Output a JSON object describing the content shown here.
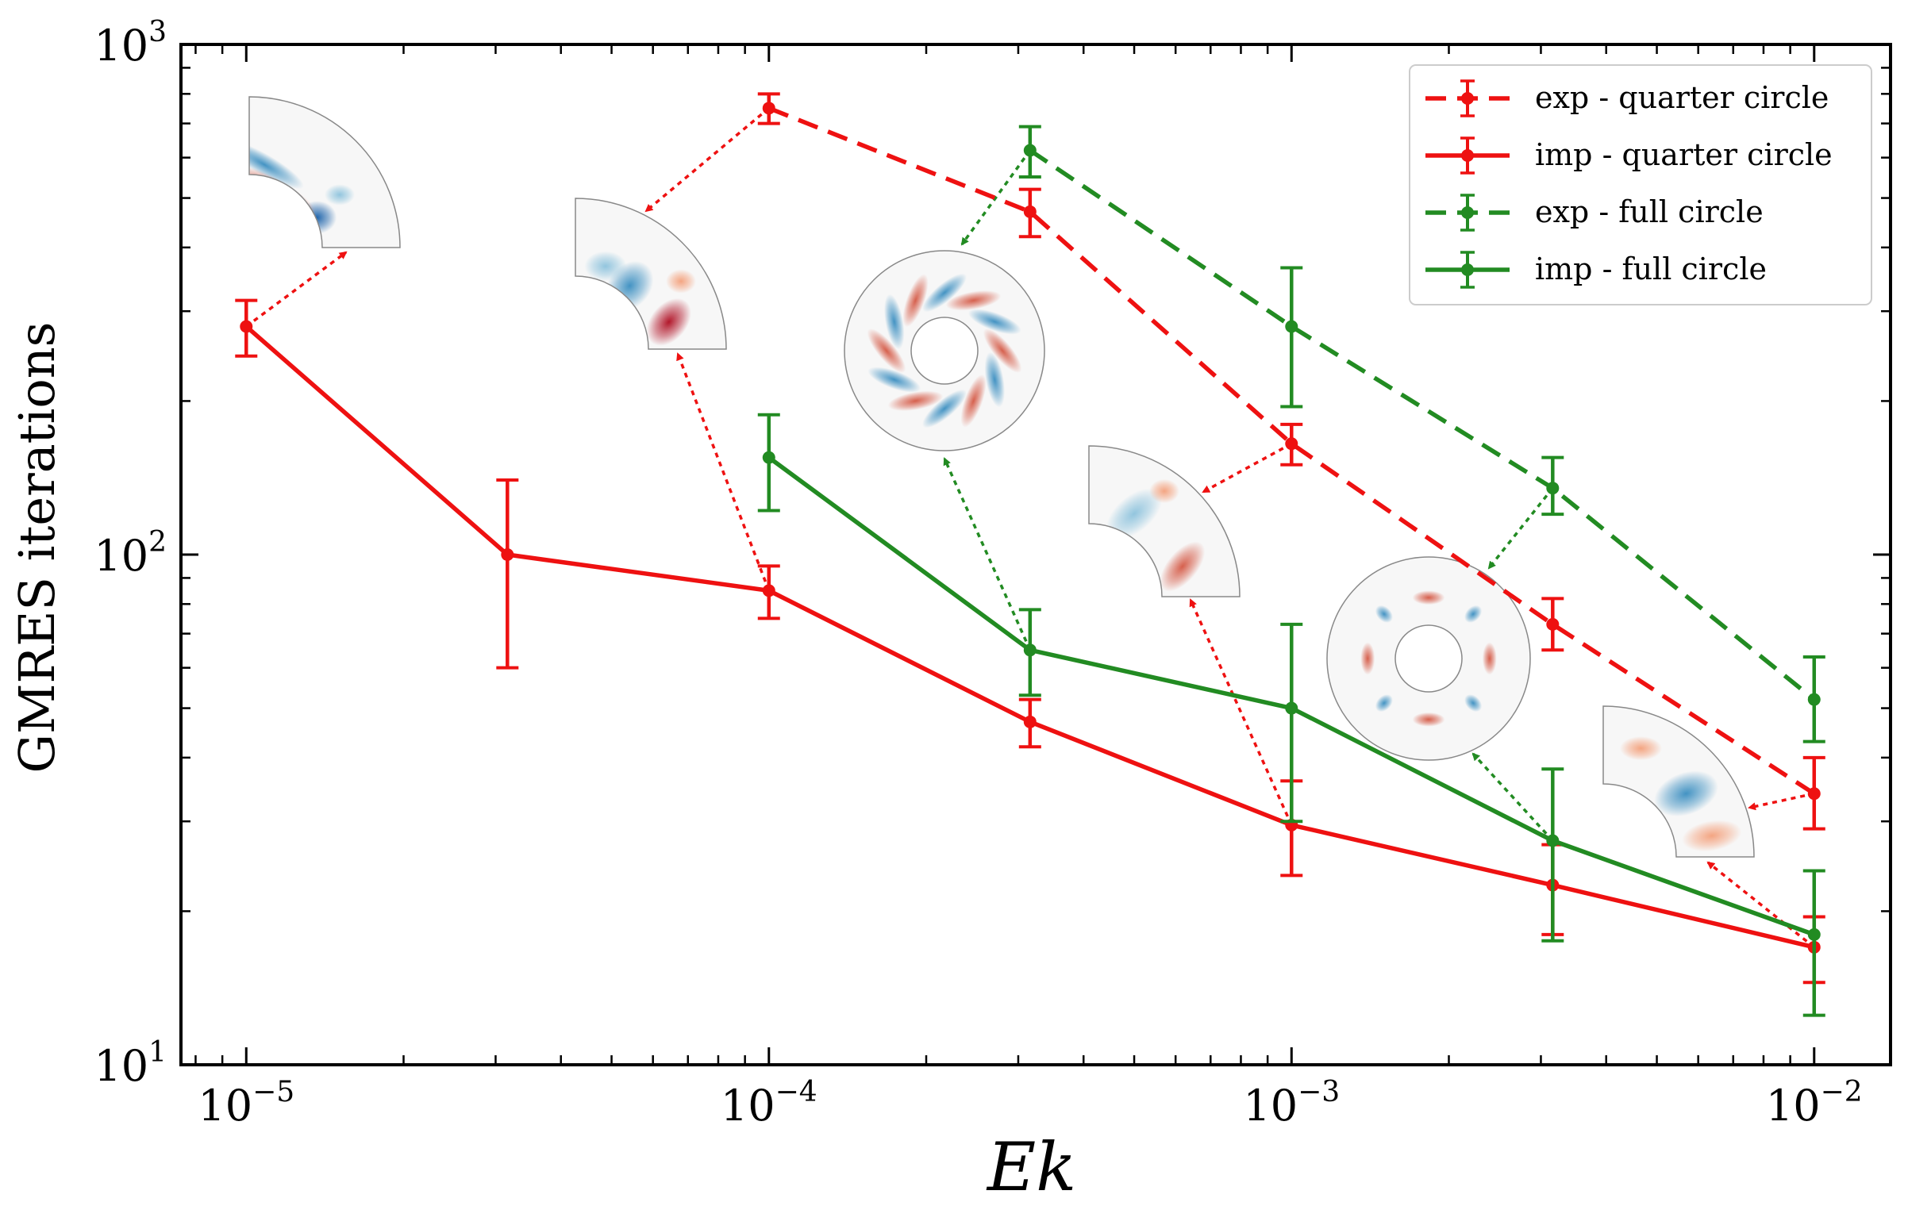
{
  "chart_data": {
    "type": "line",
    "xscale": "log",
    "yscale": "log",
    "xlim": [
      7.5e-06,
      0.014
    ],
    "ylim": [
      10,
      1000
    ],
    "xlabel": "Ek",
    "ylabel": "GMRES iterations",
    "x_ticks": [
      {
        "value": 1e-05,
        "base": "10",
        "exp": "−5"
      },
      {
        "value": 0.0001,
        "base": "10",
        "exp": "−4"
      },
      {
        "value": 0.001,
        "base": "10",
        "exp": "−3"
      },
      {
        "value": 0.01,
        "base": "10",
        "exp": "−2"
      }
    ],
    "y_ticks": [
      {
        "value": 10,
        "base": "10",
        "exp": "1"
      },
      {
        "value": 100,
        "base": "10",
        "exp": "2"
      },
      {
        "value": 1000,
        "base": "10",
        "exp": "3"
      }
    ],
    "legend_position": "top-right",
    "series": [
      {
        "name": "exp - quarter circle",
        "color": "#ee1111",
        "dash": true,
        "x": [
          0.0001,
          0.000316,
          0.001,
          0.00316,
          0.01
        ],
        "y": [
          750,
          470,
          165,
          73,
          34
        ],
        "err_low": [
          700,
          420,
          150,
          65,
          29
        ],
        "err_high": [
          800,
          520,
          180,
          82,
          40
        ]
      },
      {
        "name": "imp - quarter circle",
        "color": "#ee1111",
        "dash": false,
        "x": [
          1e-05,
          3.16e-05,
          0.0001,
          0.000316,
          0.001,
          0.00316,
          0.01
        ],
        "y": [
          280,
          100,
          85,
          47,
          29.5,
          22.5,
          17
        ],
        "err_low": [
          245,
          60,
          75,
          42,
          23.5,
          18,
          14.5
        ],
        "err_high": [
          315,
          140,
          95,
          52,
          36,
          27,
          19.5
        ]
      },
      {
        "name": "exp - full circle",
        "color": "#228b22",
        "dash": true,
        "x": [
          0.000316,
          0.001,
          0.00316,
          0.01
        ],
        "y": [
          620,
          280,
          135,
          52
        ],
        "err_low": [
          550,
          195,
          120,
          43
        ],
        "err_high": [
          690,
          365,
          155,
          63
        ]
      },
      {
        "name": "imp - full circle",
        "color": "#228b22",
        "dash": false,
        "x": [
          0.0001,
          0.000316,
          0.001,
          0.00316,
          0.01
        ],
        "y": [
          155,
          65,
          50,
          27.5,
          18
        ],
        "err_low": [
          122,
          53,
          30,
          17.5,
          12.5
        ],
        "err_high": [
          188,
          78,
          73,
          38,
          24
        ]
      }
    ]
  }
}
